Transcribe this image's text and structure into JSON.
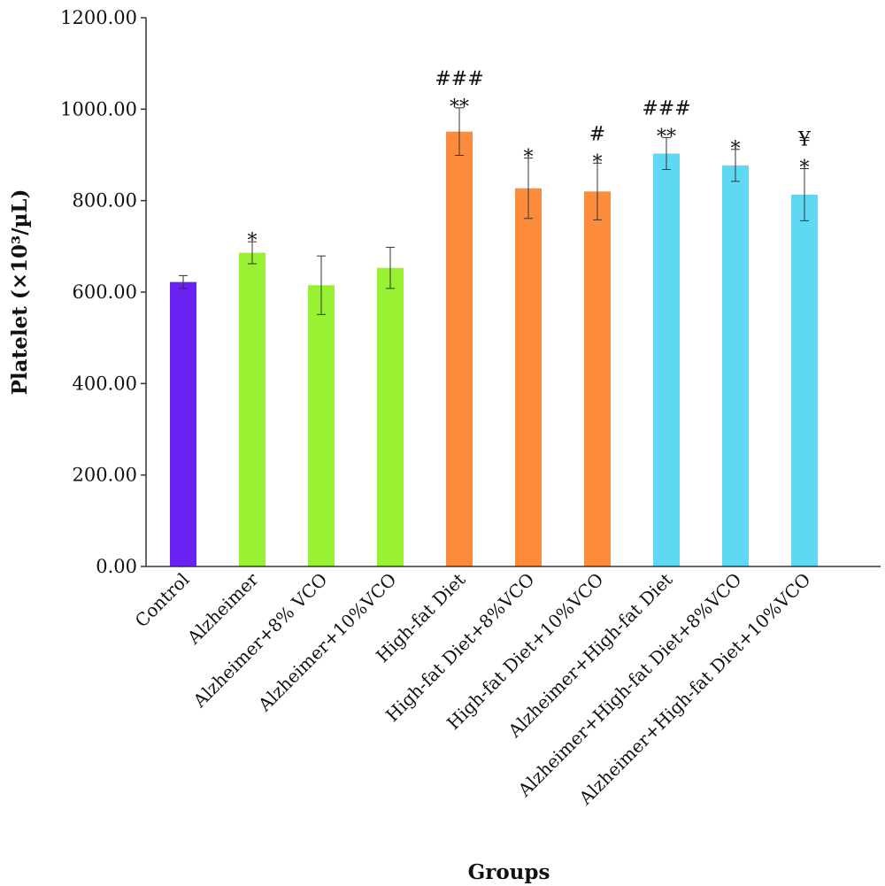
{
  "chart_data": {
    "type": "bar",
    "xlabel": "Groups",
    "ylabel": "Platelet (×10³/µL)",
    "ylim": [
      0,
      1200
    ],
    "yticks": [
      "0.00",
      "200.00",
      "400.00",
      "600.00",
      "800.00",
      "1000.00",
      "1200.00"
    ],
    "grid": false,
    "categories": [
      "Control",
      "Alzheimer",
      "Alzheimer+8% VCO",
      "Alzheimer+10%VCO",
      "High-fat Diet",
      "High-fat Diet+8%VCO",
      "High-fat Diet+10%VCO",
      "Alzheimer+High-fat Diet",
      "Alzheimer+High-fat Diet+8%VCO",
      "Alzheimer+High-fat Diet+10%VCO"
    ],
    "values": [
      622,
      686,
      615,
      653,
      951,
      827,
      820,
      903,
      877,
      813
    ],
    "errors": [
      14,
      24,
      64,
      45,
      52,
      66,
      62,
      35,
      35,
      57
    ],
    "colors": [
      "#6a22f2",
      "#98f032",
      "#98f032",
      "#98f032",
      "#fc8b3c",
      "#fc8b3c",
      "#fc8b3c",
      "#5fd8f4",
      "#5fd8f4",
      "#5fd8f4"
    ],
    "annotations": [
      [],
      [
        "*"
      ],
      [],
      [],
      [
        "###",
        "**"
      ],
      [
        "*"
      ],
      [
        "#",
        "*"
      ],
      [
        "###",
        "**"
      ],
      [
        "*"
      ],
      [
        "¥",
        "*"
      ]
    ]
  }
}
